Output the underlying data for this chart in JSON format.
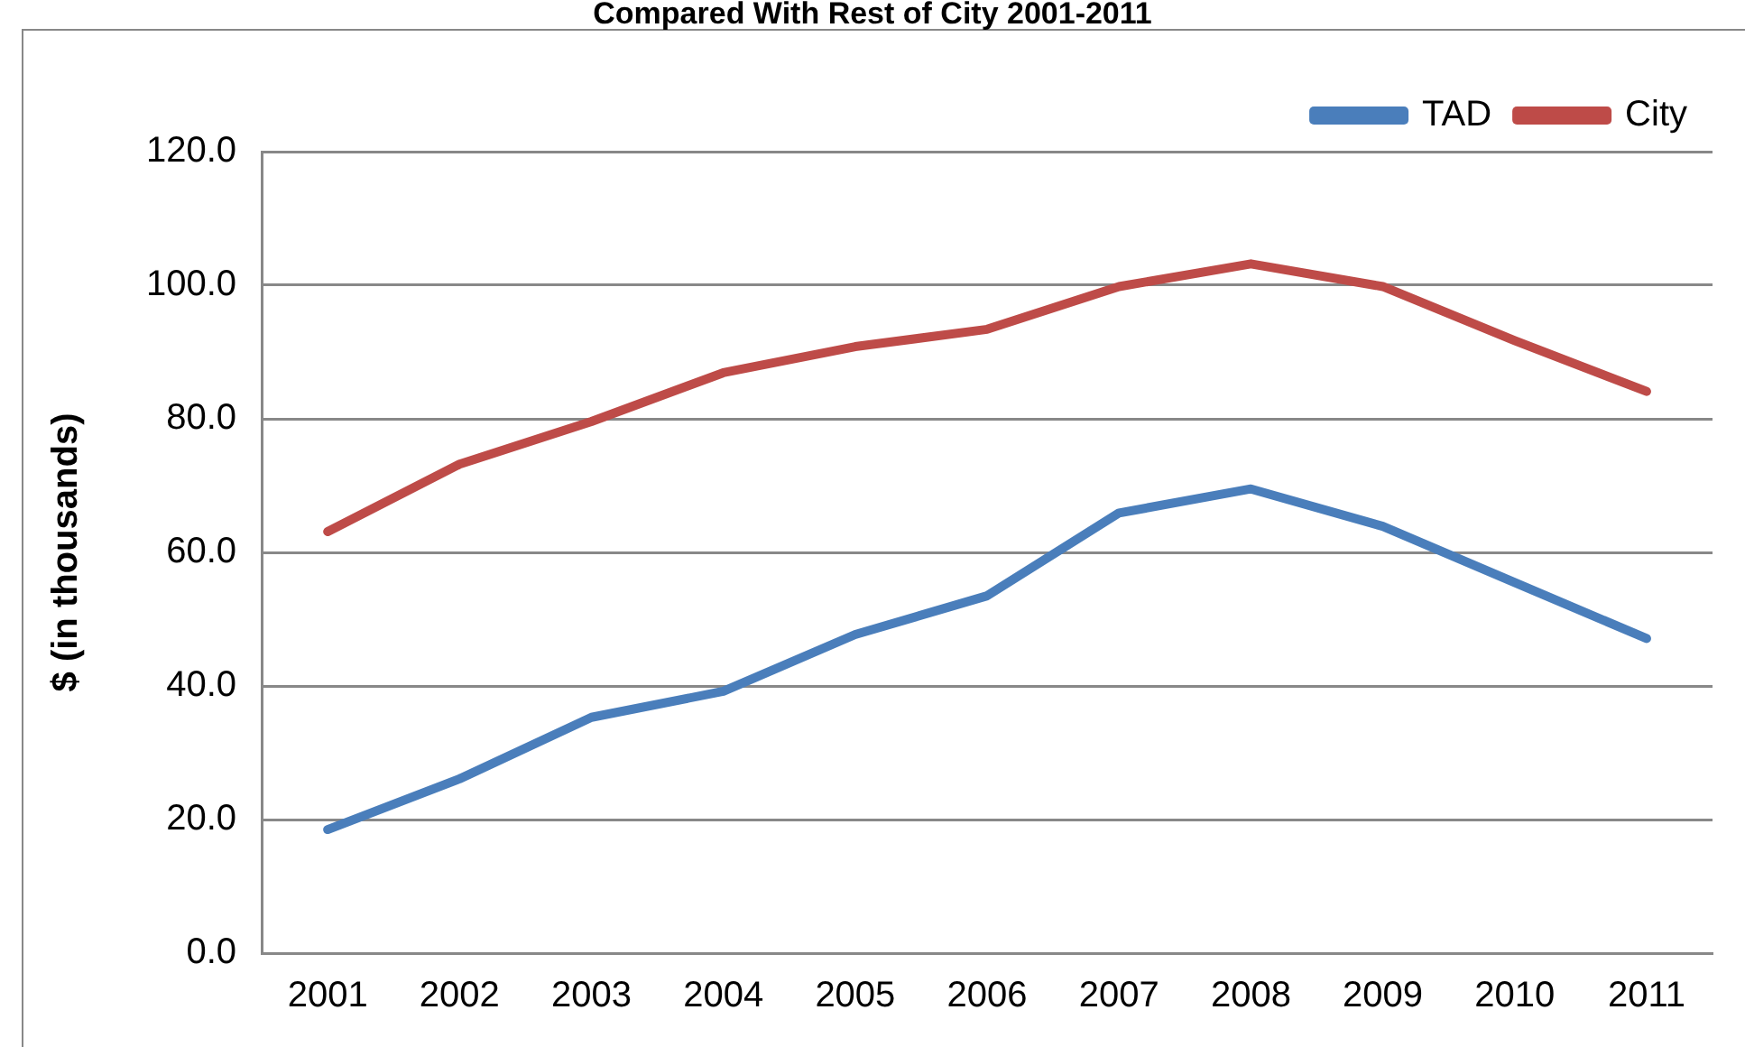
{
  "chart_data": {
    "type": "line",
    "title": "Compared With Rest of City 2001-2011",
    "ylabel": "$ (in thousands)",
    "categories": [
      "2001",
      "2002",
      "2003",
      "2004",
      "2005",
      "2006",
      "2007",
      "2008",
      "2009",
      "2010",
      "2011"
    ],
    "series": [
      {
        "name": "TAD",
        "color": "#4a7ebb",
        "values": [
          18.5,
          26.1,
          35.3,
          39.2,
          47.7,
          53.5,
          65.9,
          69.5,
          63.9,
          55.5,
          47.1
        ]
      },
      {
        "name": "City",
        "color": "#be4b48",
        "values": [
          63.1,
          73.2,
          79.6,
          86.9,
          90.8,
          93.4,
          99.8,
          103.2,
          99.8,
          91.7,
          84.1
        ]
      }
    ],
    "ylim": [
      0,
      120
    ],
    "yticks": [
      {
        "value": 0,
        "label": "0.0"
      },
      {
        "value": 20,
        "label": "20.0"
      },
      {
        "value": 40,
        "label": "40.0"
      },
      {
        "value": 60,
        "label": "60.0"
      },
      {
        "value": 80,
        "label": "80.0"
      },
      {
        "value": 100,
        "label": "100.0"
      },
      {
        "value": 120,
        "label": "120.0"
      }
    ],
    "grid": "y",
    "legend": "top right",
    "marker": "none",
    "line_style": "solid"
  }
}
